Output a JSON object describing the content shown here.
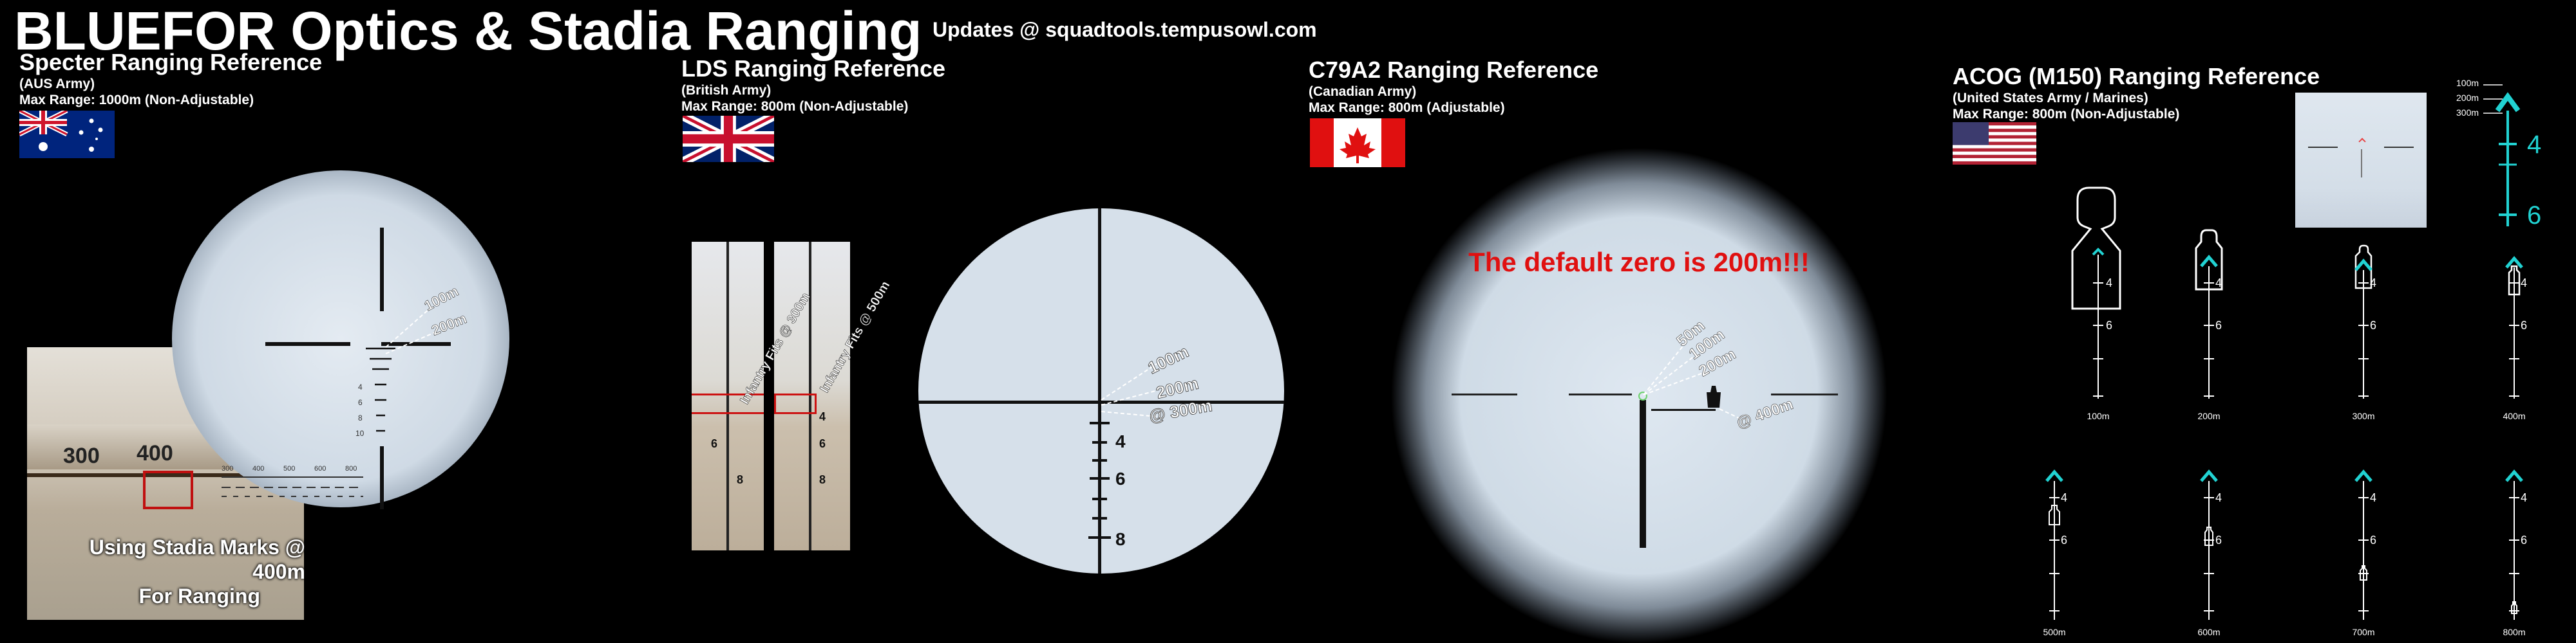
{
  "header": {
    "title": "BLUEFOR Optics & Stadia Ranging",
    "updates": "Updates @ squadtools.tempusowl.com"
  },
  "sections": {
    "specter": {
      "title": "Specter Ranging Reference",
      "army": "(AUS Army)",
      "range": "Max Range: 1000m (Non-Adjustable)",
      "flag": "australia-flag",
      "labels": {
        "m100": "100m",
        "m200": "200m"
      },
      "inset_scale": {
        "n300": "300",
        "n400": "400",
        "ticks": [
          "300",
          "400",
          "500",
          "600",
          "800"
        ]
      },
      "caption_line1": "Using Stadia Marks @ 400m",
      "caption_line2": "For Ranging",
      "reticle_numbers": [
        "4",
        "6",
        "8",
        "10"
      ]
    },
    "lds": {
      "title": "LDS Ranging Reference",
      "army": "(British Army)",
      "range": "Max Range: 800m (Non-Adjustable)",
      "flag": "uk-flag",
      "fit300": "Infantry Fits @ 300m",
      "fit500": "Infantry Fits @ 500m",
      "strip_numbers": [
        "4",
        "6",
        "8"
      ],
      "labels": {
        "m100": "100m",
        "m200": "200m",
        "m300": "@ 300m"
      },
      "reticle_numbers": [
        "4",
        "6",
        "8"
      ]
    },
    "c79": {
      "title": "C79A2 Ranging Reference",
      "army": "(Canadian Army)",
      "range": "Max Range: 800m (Adjustable)",
      "flag": "canada-flag",
      "zero_note": "The default zero is 200m!!!",
      "labels": {
        "m50": "50m",
        "m100": "100m",
        "m200": "200m",
        "m400": "@ 400m"
      }
    },
    "acog": {
      "title": "ACOG (M150) Ranging Reference",
      "army": "(United States Army / Marines)",
      "range": "Max Range: 800m (Non-Adjustable)",
      "flag": "usa-flag",
      "legend": {
        "m100": "100m",
        "m200": "200m",
        "m300": "300m",
        "n4": "4",
        "n6": "6"
      },
      "panels": [
        {
          "range": "100m",
          "n4": "4",
          "n6": "6"
        },
        {
          "range": "200m",
          "n4": "4",
          "n6": "6"
        },
        {
          "range": "300m",
          "n4": "4",
          "n6": "6"
        },
        {
          "range": "400m",
          "n4": "4",
          "n6": "6"
        },
        {
          "range": "500m",
          "n4": "4",
          "n6": "6"
        },
        {
          "range": "600m",
          "n4": "4",
          "n6": "6"
        },
        {
          "range": "700m",
          "n4": "4",
          "n6": "6"
        },
        {
          "range": "800m",
          "n4": "4",
          "n6": "6"
        }
      ]
    }
  },
  "colors": {
    "background": "#000000",
    "scope_glass": "#d6e0ea",
    "reticle": "#111111",
    "acog_chevron": "#21d2d2",
    "warning_text": "#e01010",
    "lds_box": "#cc1111"
  }
}
